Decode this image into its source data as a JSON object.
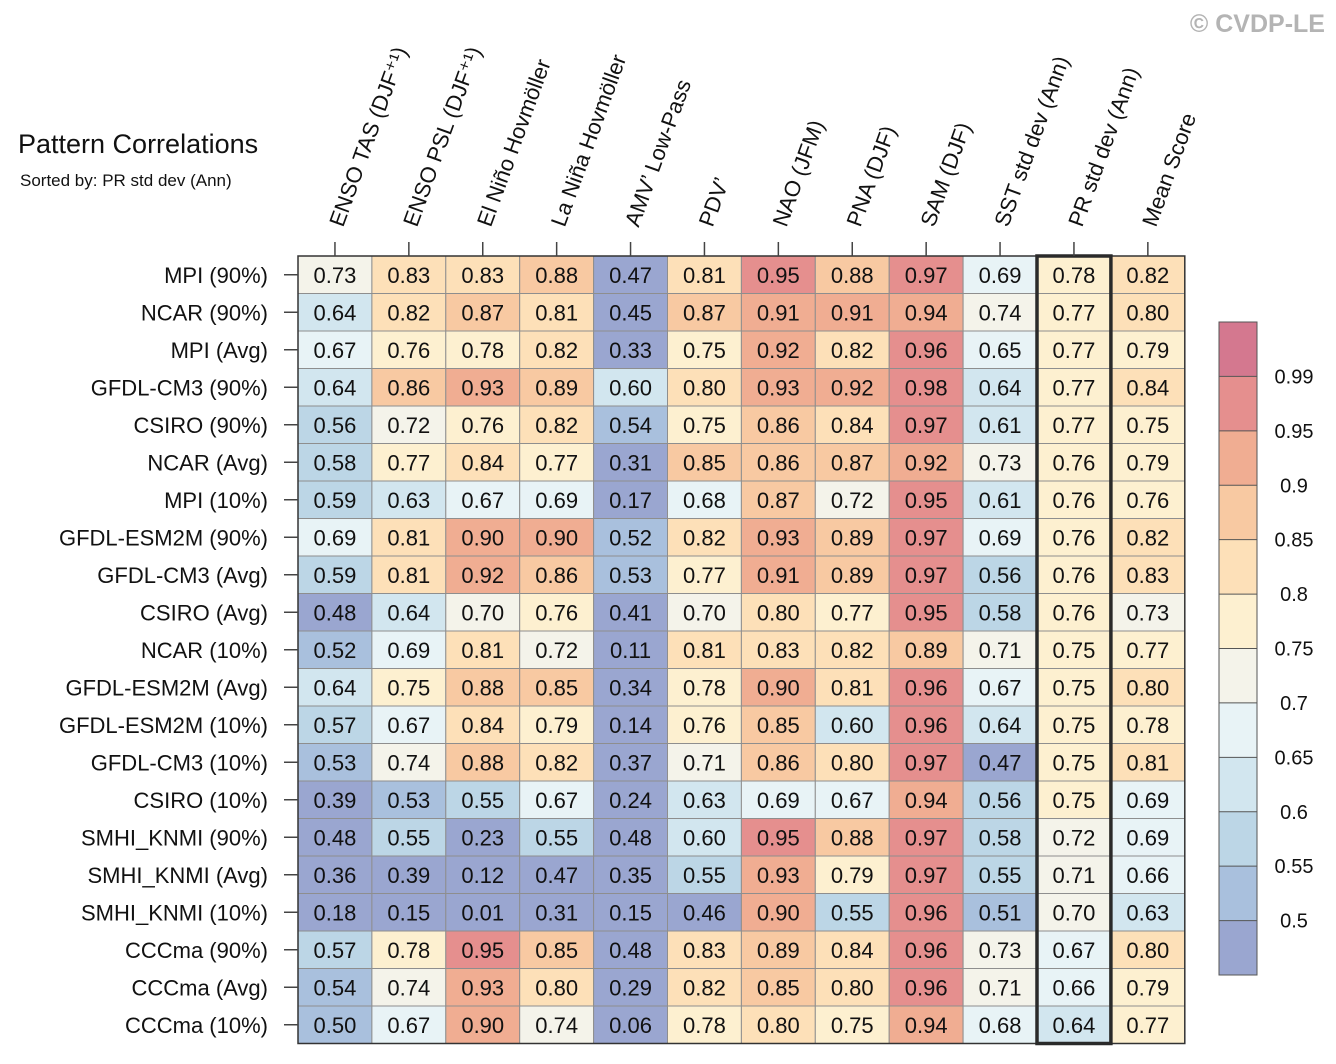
{
  "watermark": "© CVDP-LE",
  "chart_data": {
    "type": "heatmap",
    "title": "Pattern Correlations",
    "subtitle": "Sorted by: PR std dev (Ann)",
    "highlighted_column": "PR std dev (Ann)",
    "columns": [
      "ENSO TAS (DJF⁺¹)",
      "ENSO PSL (DJF⁺¹)",
      "El Niño Hovmöller",
      "La Niña Hovmöller",
      "AMV’ Low-Pass",
      "PDV’",
      "NAO (JFM)",
      "PNA (DJF)",
      "SAM (DJF)",
      "SST std dev (Ann)",
      "PR std dev (Ann)",
      "Mean Score"
    ],
    "rows": [
      "MPI (90%)",
      "NCAR (90%)",
      "MPI (Avg)",
      "GFDL-CM3 (90%)",
      "CSIRO (90%)",
      "NCAR (Avg)",
      "MPI (10%)",
      "GFDL-ESM2M (90%)",
      "GFDL-CM3 (Avg)",
      "CSIRO (Avg)",
      "NCAR (10%)",
      "GFDL-ESM2M (Avg)",
      "GFDL-ESM2M (10%)",
      "GFDL-CM3 (10%)",
      "CSIRO (10%)",
      "SMHI_KNMI (90%)",
      "SMHI_KNMI (Avg)",
      "SMHI_KNMI (10%)",
      "CCCma (90%)",
      "CCCma (Avg)",
      "CCCma (10%)"
    ],
    "values": [
      [
        "0.73",
        "0.83",
        "0.83",
        "0.88",
        "0.47",
        "0.81",
        "0.95",
        "0.88",
        "0.97",
        "0.69",
        "0.78",
        "0.82"
      ],
      [
        "0.64",
        "0.82",
        "0.87",
        "0.81",
        "0.45",
        "0.87",
        "0.91",
        "0.91",
        "0.94",
        "0.74",
        "0.77",
        "0.80"
      ],
      [
        "0.67",
        "0.76",
        "0.78",
        "0.82",
        "0.33",
        "0.75",
        "0.92",
        "0.82",
        "0.96",
        "0.65",
        "0.77",
        "0.79"
      ],
      [
        "0.64",
        "0.86",
        "0.93",
        "0.89",
        "0.60",
        "0.80",
        "0.93",
        "0.92",
        "0.98",
        "0.64",
        "0.77",
        "0.84"
      ],
      [
        "0.56",
        "0.72",
        "0.76",
        "0.82",
        "0.54",
        "0.75",
        "0.86",
        "0.84",
        "0.97",
        "0.61",
        "0.77",
        "0.75"
      ],
      [
        "0.58",
        "0.77",
        "0.84",
        "0.77",
        "0.31",
        "0.85",
        "0.86",
        "0.87",
        "0.92",
        "0.73",
        "0.76",
        "0.79"
      ],
      [
        "0.59",
        "0.63",
        "0.67",
        "0.69",
        "0.17",
        "0.68",
        "0.87",
        "0.72",
        "0.95",
        "0.61",
        "0.76",
        "0.76"
      ],
      [
        "0.69",
        "0.81",
        "0.90",
        "0.90",
        "0.52",
        "0.82",
        "0.93",
        "0.89",
        "0.97",
        "0.69",
        "0.76",
        "0.82"
      ],
      [
        "0.59",
        "0.81",
        "0.92",
        "0.86",
        "0.53",
        "0.77",
        "0.91",
        "0.89",
        "0.97",
        "0.56",
        "0.76",
        "0.83"
      ],
      [
        "0.48",
        "0.64",
        "0.70",
        "0.76",
        "0.41",
        "0.70",
        "0.80",
        "0.77",
        "0.95",
        "0.58",
        "0.76",
        "0.73"
      ],
      [
        "0.52",
        "0.69",
        "0.81",
        "0.72",
        "0.11",
        "0.81",
        "0.83",
        "0.82",
        "0.89",
        "0.71",
        "0.75",
        "0.77"
      ],
      [
        "0.64",
        "0.75",
        "0.88",
        "0.85",
        "0.34",
        "0.78",
        "0.90",
        "0.81",
        "0.96",
        "0.67",
        "0.75",
        "0.80"
      ],
      [
        "0.57",
        "0.67",
        "0.84",
        "0.79",
        "0.14",
        "0.76",
        "0.85",
        "0.60",
        "0.96",
        "0.64",
        "0.75",
        "0.78"
      ],
      [
        "0.53",
        "0.74",
        "0.88",
        "0.82",
        "0.37",
        "0.71",
        "0.86",
        "0.80",
        "0.97",
        "0.47",
        "0.75",
        "0.81"
      ],
      [
        "0.39",
        "0.53",
        "0.55",
        "0.67",
        "0.24",
        "0.63",
        "0.69",
        "0.67",
        "0.94",
        "0.56",
        "0.75",
        "0.69"
      ],
      [
        "0.48",
        "0.55",
        "0.23",
        "0.55",
        "0.48",
        "0.60",
        "0.95",
        "0.88",
        "0.97",
        "0.58",
        "0.72",
        "0.69"
      ],
      [
        "0.36",
        "0.39",
        "0.12",
        "0.47",
        "0.35",
        "0.55",
        "0.93",
        "0.79",
        "0.97",
        "0.55",
        "0.71",
        "0.66"
      ],
      [
        "0.18",
        "0.15",
        "0.01",
        "0.31",
        "0.15",
        "0.46",
        "0.90",
        "0.55",
        "0.96",
        "0.51",
        "0.70",
        "0.63"
      ],
      [
        "0.57",
        "0.78",
        "0.95",
        "0.85",
        "0.48",
        "0.83",
        "0.89",
        "0.84",
        "0.96",
        "0.73",
        "0.67",
        "0.80"
      ],
      [
        "0.54",
        "0.74",
        "0.93",
        "0.80",
        "0.29",
        "0.82",
        "0.85",
        "0.80",
        "0.96",
        "0.71",
        "0.66",
        "0.79"
      ],
      [
        "0.50",
        "0.67",
        "0.90",
        "0.74",
        "0.06",
        "0.78",
        "0.80",
        "0.75",
        "0.94",
        "0.68",
        "0.64",
        "0.77"
      ]
    ],
    "colorbar": {
      "labels": [
        "0.99",
        "0.95",
        "0.9",
        "0.85",
        "0.8",
        "0.75",
        "0.7",
        "0.65",
        "0.6",
        "0.55",
        "0.5"
      ],
      "thresholds": [
        0.5,
        0.55,
        0.6,
        0.65,
        0.7,
        0.75,
        0.8,
        0.85,
        0.9,
        0.95,
        0.99
      ],
      "colors": [
        "#9aa6d0",
        "#a9c0dd",
        "#bcd6e6",
        "#d2e6ef",
        "#e8f3f6",
        "#f4f3ea",
        "#fdf0d0",
        "#fde0b8",
        "#f8c9a2",
        "#f0ad92",
        "#e58f8e",
        "#d4788f"
      ]
    }
  }
}
